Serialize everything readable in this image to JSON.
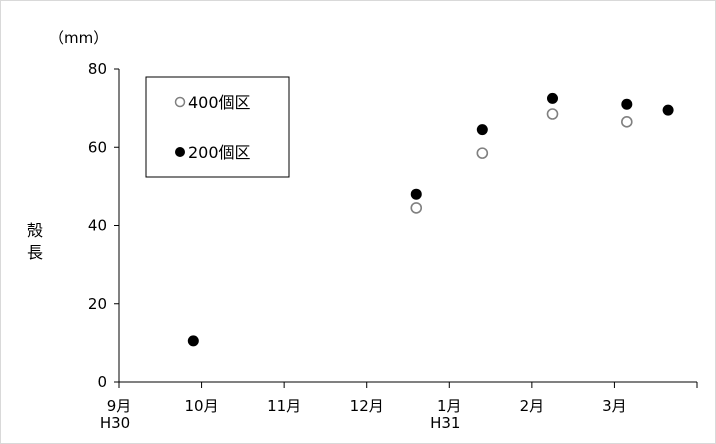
{
  "chart_data": {
    "type": "scatter",
    "title": "",
    "unit_label": "（mm）",
    "ylabel": "殻長",
    "ylim": [
      0,
      80
    ],
    "yticks": [
      0,
      20,
      40,
      60,
      80
    ],
    "xlim": [
      0,
      7
    ],
    "x_ticks": [
      {
        "x": 0,
        "label": "9月",
        "sub": "H30"
      },
      {
        "x": 1,
        "label": "10月",
        "sub": ""
      },
      {
        "x": 2,
        "label": "11月",
        "sub": ""
      },
      {
        "x": 3,
        "label": "12月",
        "sub": ""
      },
      {
        "x": 4,
        "label": "1月",
        "sub": "H31"
      },
      {
        "x": 5,
        "label": "2月",
        "sub": ""
      },
      {
        "x": 6,
        "label": "3月",
        "sub": ""
      }
    ],
    "grid": false,
    "legend_position": "top-left",
    "series": [
      {
        "name": "400個区",
        "marker": "open-circle",
        "color": "#808080",
        "x": [
          3.6,
          4.4,
          5.25,
          6.15
        ],
        "y": [
          44.5,
          58.5,
          68.5,
          66.5
        ]
      },
      {
        "name": "200個区",
        "marker": "filled-circle",
        "color": "#000000",
        "x": [
          0.9,
          3.6,
          4.4,
          5.25,
          6.15,
          6.65
        ],
        "y": [
          10.5,
          48,
          64.5,
          72.5,
          71,
          69.5
        ]
      }
    ]
  }
}
